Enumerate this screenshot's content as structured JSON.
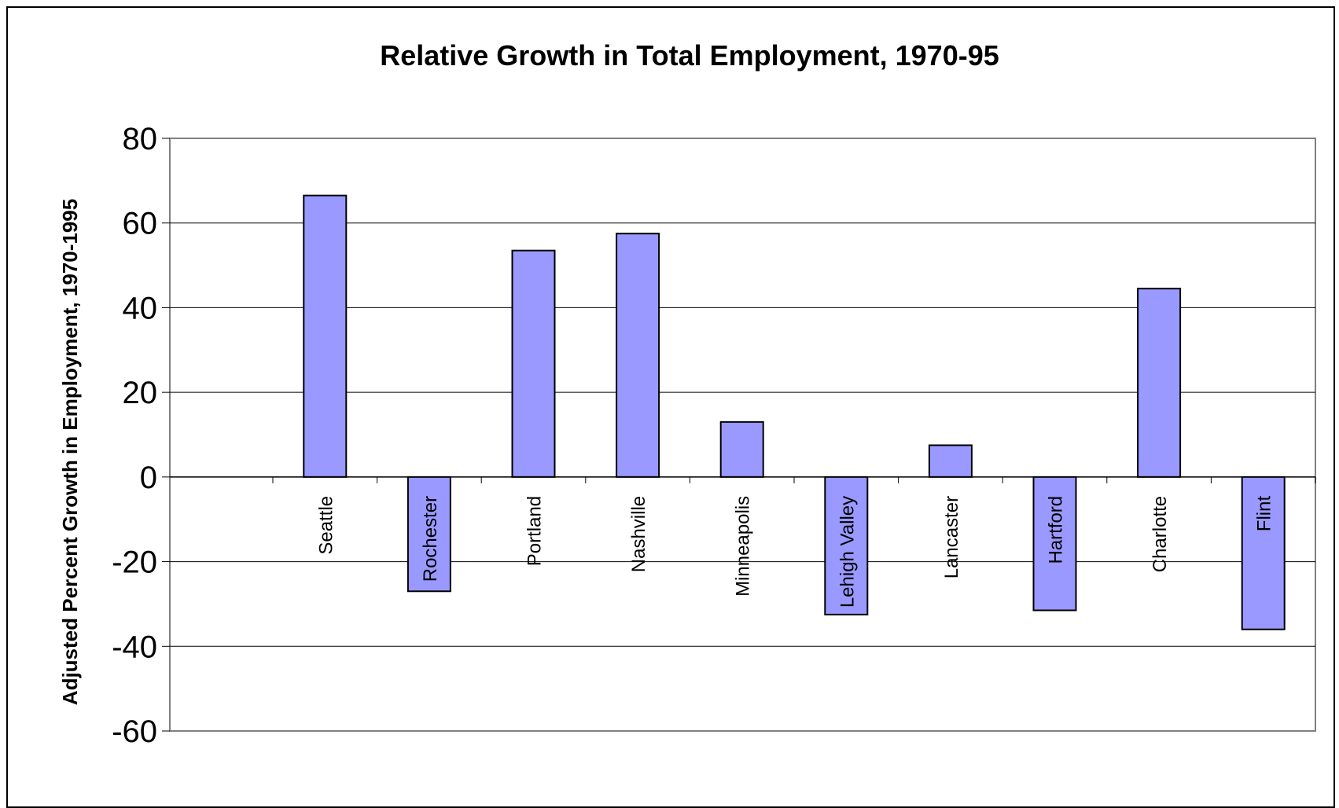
{
  "chart_data": {
    "type": "bar",
    "title": "Relative Growth in Total Employment, 1970-95",
    "xlabel": "",
    "ylabel": "Adjusted Percent Growth in Employment, 1970-1995",
    "ylim": [
      -60,
      80
    ],
    "yticks": [
      "80",
      "60",
      "40",
      "20",
      "0",
      "-20",
      "-40",
      "-60"
    ],
    "grid": true,
    "legend": "none",
    "categories": [
      "Seattle",
      "Rochester",
      "Portland",
      "Nashville",
      "Minneapolis",
      "Lehigh Valley",
      "Lancaster",
      "Hartford",
      "Charlotte",
      "Flint"
    ],
    "values": [
      66.5,
      -27,
      53.5,
      57.5,
      13,
      -32.5,
      7.5,
      -31.5,
      44.5,
      -36
    ],
    "colors": {
      "bar": "#9999ff",
      "bar_border": "#000000",
      "grid": "#000000",
      "frame": "#808080"
    }
  }
}
